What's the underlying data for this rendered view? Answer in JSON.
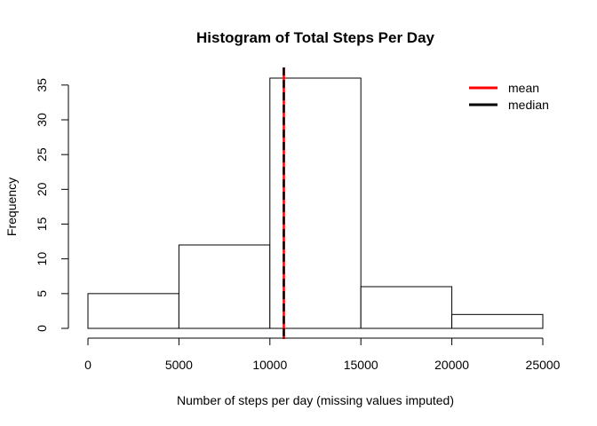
{
  "chart_data": {
    "type": "bar",
    "title": "Histogram of Total Steps Per Day",
    "xlabel": "Number of steps per day (missing values imputed)",
    "ylabel": "Frequency",
    "bins": [
      {
        "x0": 0,
        "x1": 5000,
        "count": 5
      },
      {
        "x0": 5000,
        "x1": 10000,
        "count": 12
      },
      {
        "x0": 10000,
        "x1": 15000,
        "count": 36
      },
      {
        "x0": 15000,
        "x1": 20000,
        "count": 6
      },
      {
        "x0": 20000,
        "x1": 25000,
        "count": 2
      }
    ],
    "xlim": [
      0,
      25000
    ],
    "ylim": [
      0,
      36
    ],
    "x_ticks": [
      0,
      5000,
      10000,
      15000,
      20000,
      25000
    ],
    "y_ticks": [
      0,
      5,
      10,
      15,
      20,
      25,
      30,
      35
    ],
    "grid": false,
    "bar_fill": "#ffffff",
    "bar_stroke": "#000000",
    "reference_lines": [
      {
        "name": "mean",
        "value": 10766,
        "color": "#ff0000",
        "style": "solid"
      },
      {
        "name": "median",
        "value": 10766,
        "color": "#000000",
        "style": "dashed"
      }
    ],
    "legend": {
      "placement": "top-right",
      "entries": [
        {
          "label": "mean",
          "color": "#ff0000"
        },
        {
          "label": "median",
          "color": "#000000"
        }
      ]
    }
  }
}
